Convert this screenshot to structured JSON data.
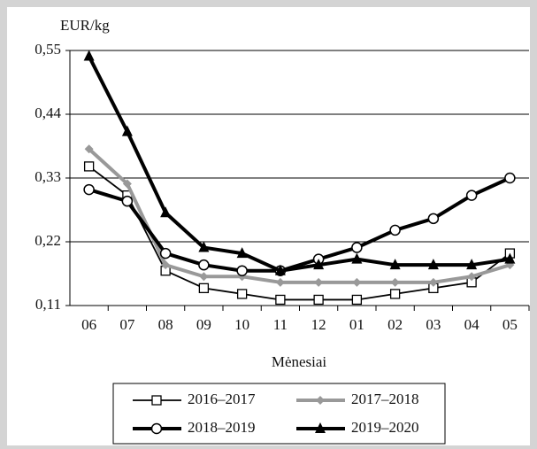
{
  "chart_data": {
    "type": "line",
    "y_label": "EUR/kg",
    "x_label": "Mėnesiai",
    "categories": [
      "06",
      "07",
      "08",
      "09",
      "10",
      "11",
      "12",
      "01",
      "02",
      "03",
      "04",
      "05"
    ],
    "ylim": [
      0.11,
      0.55
    ],
    "yticks": [
      {
        "value": 0.11,
        "label": "0,11"
      },
      {
        "value": 0.22,
        "label": "0,22"
      },
      {
        "value": 0.33,
        "label": "0,33"
      },
      {
        "value": 0.44,
        "label": "0,44"
      },
      {
        "value": 0.55,
        "label": "0,55"
      }
    ],
    "grid": true,
    "legend": "bottom",
    "series": [
      {
        "name": "2016–2017",
        "color": "#000000",
        "marker": "square",
        "values": [
          0.35,
          0.3,
          0.17,
          0.14,
          0.13,
          0.12,
          0.12,
          0.12,
          0.13,
          0.14,
          0.15,
          0.2
        ]
      },
      {
        "name": "2017–2018",
        "color": "#999999",
        "marker": "diamond",
        "values": [
          0.38,
          0.32,
          0.18,
          0.16,
          0.16,
          0.15,
          0.15,
          0.15,
          0.15,
          0.15,
          0.16,
          0.18
        ]
      },
      {
        "name": "2018–2019",
        "color": "#000000",
        "marker": "circle",
        "values": [
          0.31,
          0.29,
          0.2,
          0.18,
          0.17,
          0.17,
          0.19,
          0.21,
          0.24,
          0.26,
          0.3,
          0.33
        ]
      },
      {
        "name": "2019–2020",
        "color": "#000000",
        "marker": "triangle",
        "values": [
          0.54,
          0.41,
          0.27,
          0.21,
          0.2,
          0.17,
          0.18,
          0.19,
          0.18,
          0.18,
          0.18,
          0.19
        ]
      }
    ]
  }
}
